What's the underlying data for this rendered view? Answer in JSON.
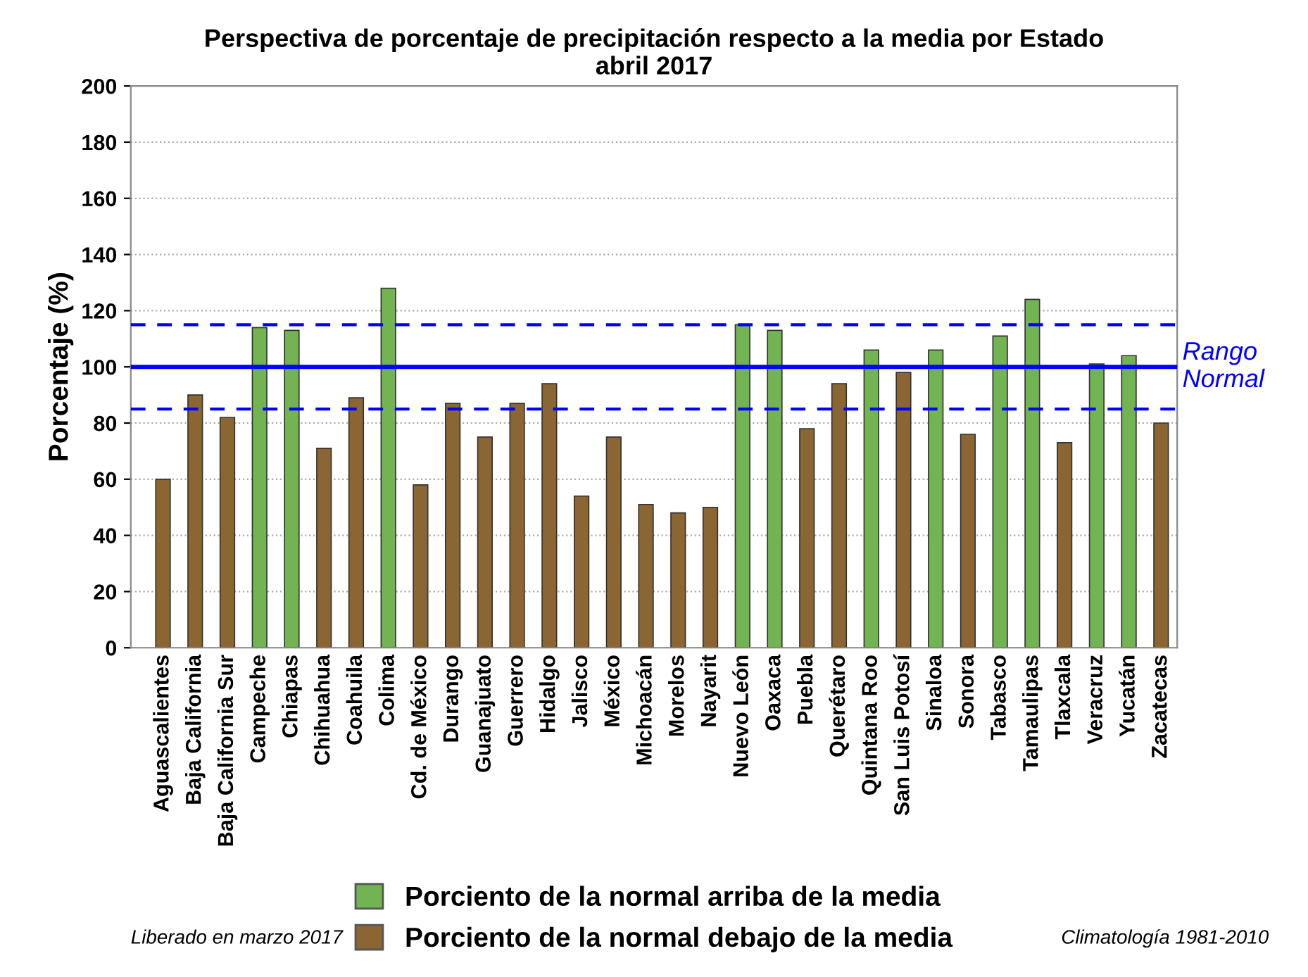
{
  "chart_data": {
    "type": "bar",
    "title": "Perspectiva de porcentaje de precipitación respecto a la media por Estado\nabril 2017",
    "ylabel": "Porcentaje (%)",
    "categories": [
      "Aguascalientes",
      "Baja California",
      "Baja California Sur",
      "Campeche",
      "Chiapas",
      "Chihuahua",
      "Coahuila",
      "Colima",
      "Cd. de México",
      "Durango",
      "Guanajuato",
      "Guerrero",
      "Hidalgo",
      "Jalisco",
      "México",
      "Michoacán",
      "Morelos",
      "Nayarit",
      "Nuevo León",
      "Oaxaca",
      "Puebla",
      "Querétaro",
      "Quintana Roo",
      "San Luis Potosí",
      "Sinaloa",
      "Sonora",
      "Tabasco",
      "Tamaulipas",
      "Tlaxcala",
      "Veracruz",
      "Yucatán",
      "Zacatecas"
    ],
    "series": [
      {
        "name": "Porciento de la normal arriba de la media",
        "color": "#72b352",
        "values": [
          null,
          null,
          null,
          114,
          113,
          null,
          null,
          128,
          null,
          null,
          null,
          null,
          null,
          null,
          null,
          null,
          null,
          null,
          115,
          113,
          null,
          null,
          106,
          null,
          106,
          null,
          111,
          124,
          null,
          101,
          104,
          null
        ]
      },
      {
        "name": "Porciento de la normal debajo de la media",
        "color": "#8b6632",
        "values": [
          60,
          90,
          82,
          null,
          null,
          71,
          89,
          null,
          58,
          87,
          75,
          87,
          94,
          54,
          75,
          51,
          48,
          50,
          null,
          null,
          78,
          94,
          null,
          98,
          null,
          76,
          null,
          null,
          73,
          null,
          null,
          80
        ]
      }
    ],
    "ylim": [
      0,
      200
    ],
    "yticks": [
      0,
      20,
      40,
      60,
      80,
      100,
      120,
      140,
      160,
      180,
      200
    ],
    "grid": "y",
    "legend": "bottom",
    "ref_lines": [
      {
        "axis": "y",
        "value": 100,
        "label": "Rango\nNormal",
        "color": "#0000ff",
        "line_style": "solid"
      },
      {
        "axis": "y",
        "value": 115,
        "label": null,
        "color": "#0000ff",
        "line_style": "dashed"
      },
      {
        "axis": "y",
        "value": 85,
        "label": null,
        "color": "#0000ff",
        "line_style": "dashed"
      }
    ],
    "annotations": [
      "Liberado en marzo 2017",
      "Climatología 1981-2010"
    ]
  }
}
